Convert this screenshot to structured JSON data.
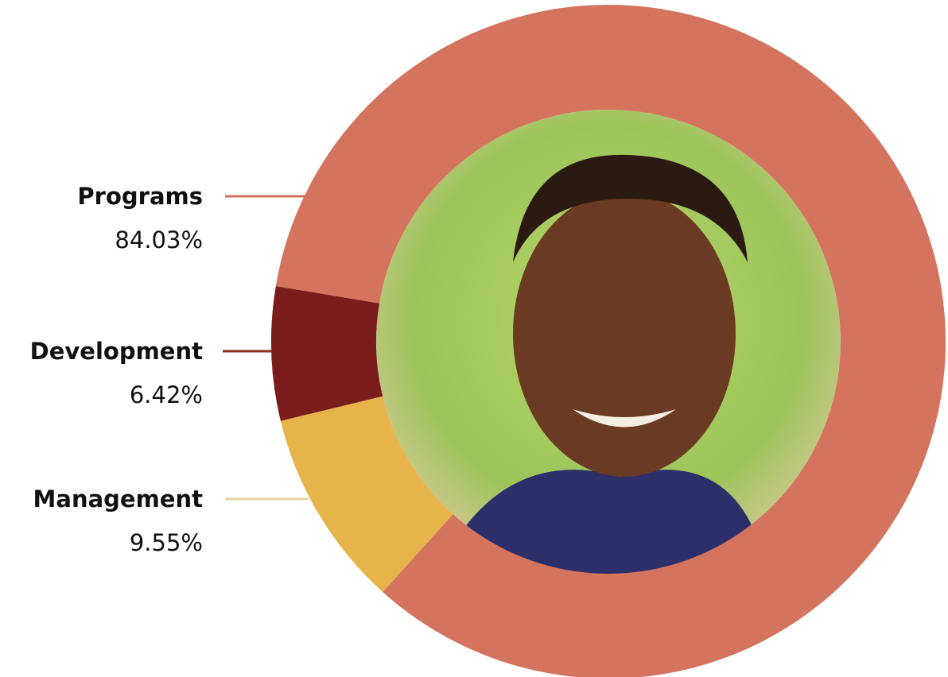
{
  "chart_data": {
    "type": "donut",
    "categories": [
      "Programs",
      "Development",
      "Management"
    ],
    "values": [
      84.03,
      6.42,
      9.55
    ],
    "value_labels": [
      "84.03%",
      "6.42%",
      "9.55%"
    ],
    "colors": [
      "#d4735e",
      "#7b1c1c",
      "#e6b44a"
    ]
  }
}
